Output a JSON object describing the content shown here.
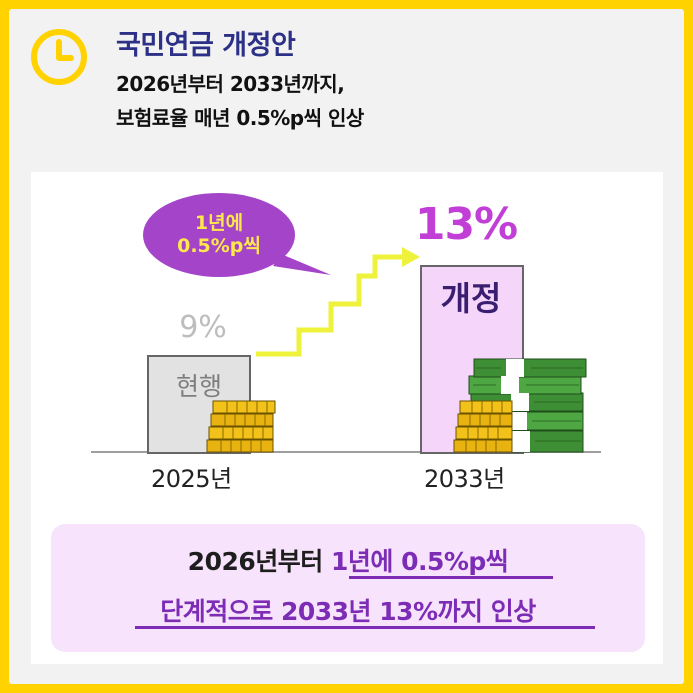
{
  "header": {
    "title": "국민연금 개정안",
    "subtitle_line1": "2026년부터 2033년까지,",
    "subtitle_line2": "보험료율 매년 0.5%p씩 인상"
  },
  "illustration": {
    "bubble_line1": "1년에",
    "bubble_line2": "0.5%p씩",
    "current_rate": "9%",
    "current_label": "현행",
    "new_rate": "13%",
    "new_label": "개정",
    "year_start": "2025년",
    "year_end": "2033년"
  },
  "summary": {
    "line1_dark": "2026년부터 ",
    "line1_highlight": "1년에 0.5%p씩",
    "line2": "단계적으로 2033년 13%까지 인상"
  },
  "colors": {
    "background": "#FFD200",
    "title": "#2C3187",
    "bubble": "#A444C8",
    "accent_purple": "#7C2CB5",
    "arrow": "#EEF23A"
  }
}
